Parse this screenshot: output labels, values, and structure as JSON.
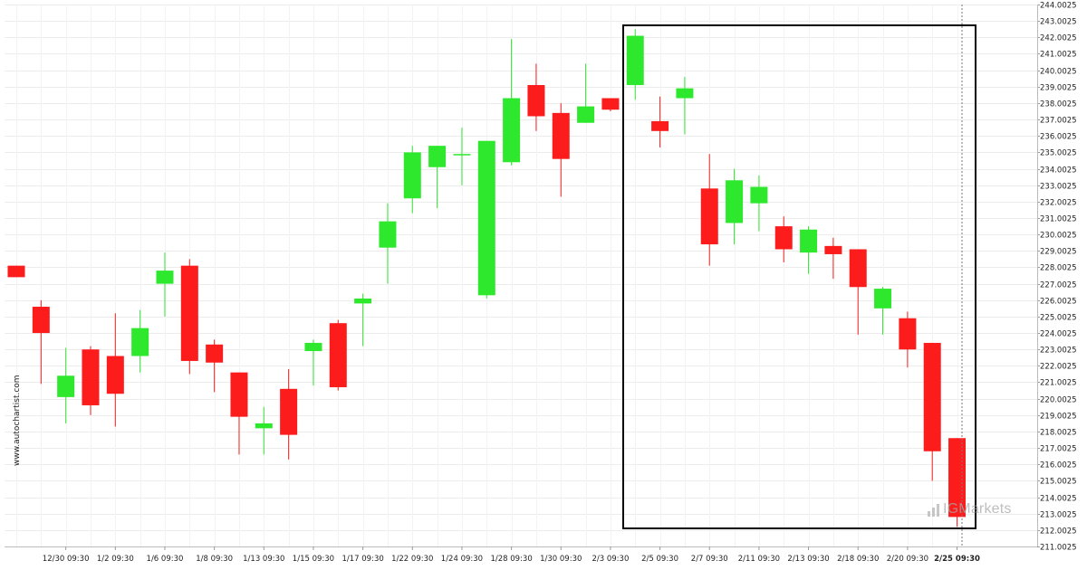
{
  "watermark": "www.autochartist.com",
  "logo": {
    "mark": "IG",
    "text": "Markets"
  },
  "chart_data": {
    "type": "candlestick",
    "x_tick_labels": [
      "12/30 09:30",
      "1/2 09:30",
      "1/6 09:30",
      "1/8 09:30",
      "1/13 09:30",
      "1/15 09:30",
      "1/17 09:30",
      "1/22 09:30",
      "1/24 09:30",
      "1/28 09:30",
      "1/30 09:30",
      "2/3 09:30",
      "2/5 09:30",
      "2/7 09:30",
      "2/11 09:30",
      "2/13 09:30",
      "2/18 09:30",
      "2/20 09:30",
      "2/25 09:30"
    ],
    "y_tick_labels": [
      "244.0025",
      "243.0025",
      "242.0025",
      "241.0025",
      "240.0025",
      "239.0025",
      "238.0025",
      "237.0025",
      "236.0025",
      "235.0025",
      "234.0025",
      "233.0025",
      "232.0025",
      "231.0025",
      "230.0025",
      "229.0025",
      "228.0025",
      "227.0025",
      "226.0025",
      "225.0025",
      "224.0025",
      "223.0025",
      "222.0025",
      "221.0025",
      "220.0025",
      "219.0025",
      "218.0025",
      "217.0025",
      "216.0025",
      "215.0025",
      "214.0025",
      "213.0025",
      "212.0025",
      "211.0025"
    ],
    "ylim": [
      211.0025,
      244.0025
    ],
    "grid": true,
    "up_color": "#2ee82e",
    "down_color": "#fc1c1c",
    "candles": [
      {
        "o": 228.1,
        "h": 228.1,
        "l": 227.4,
        "c": 227.4
      },
      {
        "o": 225.6,
        "h": 226.0,
        "l": 220.9,
        "c": 224.0
      },
      {
        "o": 220.1,
        "h": 223.1,
        "l": 218.5,
        "c": 221.4
      },
      {
        "o": 223.0,
        "h": 223.2,
        "l": 219.0,
        "c": 219.6
      },
      {
        "o": 222.6,
        "h": 225.2,
        "l": 218.3,
        "c": 220.3
      },
      {
        "o": 222.6,
        "h": 225.4,
        "l": 221.6,
        "c": 224.3
      },
      {
        "o": 227.0,
        "h": 228.9,
        "l": 225.0,
        "c": 227.8
      },
      {
        "o": 228.1,
        "h": 228.5,
        "l": 221.5,
        "c": 222.3
      },
      {
        "o": 223.3,
        "h": 223.6,
        "l": 220.4,
        "c": 222.2
      },
      {
        "o": 221.6,
        "h": 221.6,
        "l": 216.6,
        "c": 218.9
      },
      {
        "o": 218.2,
        "h": 219.5,
        "l": 216.6,
        "c": 218.5
      },
      {
        "o": 220.6,
        "h": 221.8,
        "l": 216.3,
        "c": 217.8
      },
      {
        "o": 222.9,
        "h": 223.6,
        "l": 220.8,
        "c": 223.4
      },
      {
        "o": 224.6,
        "h": 224.8,
        "l": 220.5,
        "c": 220.7
      },
      {
        "o": 225.8,
        "h": 226.4,
        "l": 223.2,
        "c": 226.1
      },
      {
        "o": 229.2,
        "h": 231.9,
        "l": 227.0,
        "c": 230.8
      },
      {
        "o": 232.2,
        "h": 235.4,
        "l": 231.3,
        "c": 235.0
      },
      {
        "o": 234.1,
        "h": 235.4,
        "l": 231.6,
        "c": 235.4
      },
      {
        "o": 234.9,
        "h": 236.5,
        "l": 233.0,
        "c": 234.9
      },
      {
        "o": 226.3,
        "h": 235.7,
        "l": 226.1,
        "c": 235.7
      },
      {
        "o": 234.4,
        "h": 241.9,
        "l": 234.2,
        "c": 238.3
      },
      {
        "o": 239.1,
        "h": 240.4,
        "l": 236.3,
        "c": 237.2
      },
      {
        "o": 237.4,
        "h": 238.0,
        "l": 232.3,
        "c": 234.6
      },
      {
        "o": 236.8,
        "h": 240.4,
        "l": 236.8,
        "c": 237.8
      },
      {
        "o": 238.3,
        "h": 238.3,
        "l": 237.5,
        "c": 237.6
      },
      {
        "o": 239.1,
        "h": 242.5,
        "l": 238.2,
        "c": 242.1
      },
      {
        "o": 236.9,
        "h": 238.4,
        "l": 235.3,
        "c": 236.3
      },
      {
        "o": 238.3,
        "h": 239.6,
        "l": 236.1,
        "c": 238.9
      },
      {
        "o": 232.8,
        "h": 234.9,
        "l": 228.1,
        "c": 229.4
      },
      {
        "o": 230.7,
        "h": 234.0,
        "l": 229.4,
        "c": 233.3
      },
      {
        "o": 231.9,
        "h": 233.6,
        "l": 230.2,
        "c": 232.9
      },
      {
        "o": 230.5,
        "h": 231.1,
        "l": 228.3,
        "c": 229.1
      },
      {
        "o": 228.9,
        "h": 230.5,
        "l": 227.6,
        "c": 230.3
      },
      {
        "o": 229.3,
        "h": 229.8,
        "l": 227.3,
        "c": 228.8
      },
      {
        "o": 229.1,
        "h": 229.1,
        "l": 223.9,
        "c": 226.8
      },
      {
        "o": 225.5,
        "h": 226.8,
        "l": 223.9,
        "c": 226.7
      },
      {
        "o": 224.9,
        "h": 225.3,
        "l": 221.9,
        "c": 223.0
      },
      {
        "o": 223.4,
        "h": 223.4,
        "l": 215.0,
        "c": 216.8
      },
      {
        "o": 217.6,
        "h": 217.6,
        "l": 212.2,
        "c": 212.8
      }
    ]
  }
}
